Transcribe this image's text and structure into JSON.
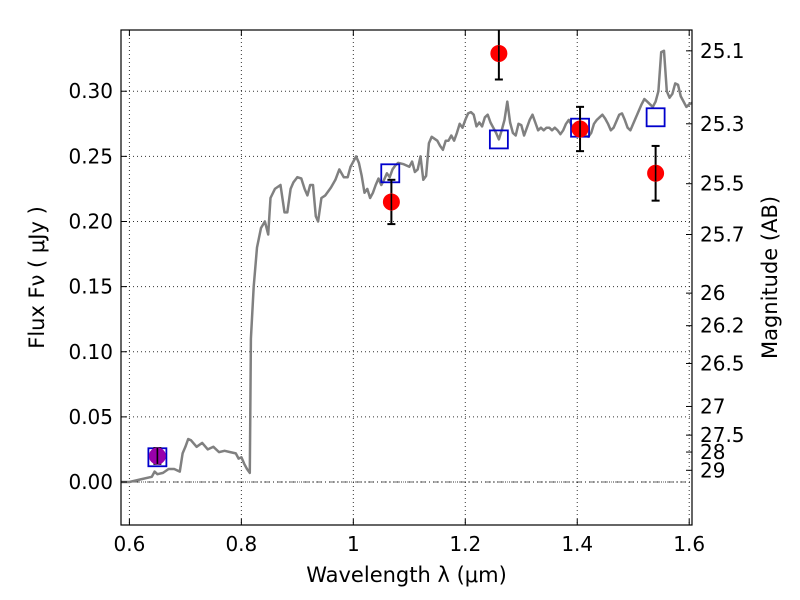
{
  "chart_data": {
    "type": "scatter",
    "xlabel": "Wavelength  λ (μm)",
    "ylabel": "Flux  Fν  ( μJy )",
    "ylabel_right": "Magnitude (AB)",
    "xlim": [
      0.585,
      1.605
    ],
    "ylim": [
      -0.033,
      0.347
    ],
    "grid": true,
    "x_ticks": [
      0.6,
      0.8,
      1.0,
      1.2,
      1.4,
      1.6
    ],
    "x_tick_labels": [
      "0.6",
      "0.8",
      "1",
      "1.2",
      "1.4",
      "1.6"
    ],
    "y_ticks": [
      0.0,
      0.05,
      0.1,
      0.15,
      0.2,
      0.25,
      0.3
    ],
    "y_tick_labels": [
      "0.00",
      "0.05",
      "0.10",
      "0.15",
      "0.20",
      "0.25",
      "0.30"
    ],
    "right_ticks": [
      {
        "flux": 0.331,
        "label": "25.1"
      },
      {
        "flux": 0.275,
        "label": "25.3"
      },
      {
        "flux": 0.229,
        "label": "25.5"
      },
      {
        "flux": 0.19,
        "label": "25.7"
      },
      {
        "flux": 0.145,
        "label": "26"
      },
      {
        "flux": 0.12,
        "label": "26.2"
      },
      {
        "flux": 0.091,
        "label": "26.5"
      },
      {
        "flux": 0.058,
        "label": "27"
      },
      {
        "flux": 0.036,
        "label": "27.5"
      },
      {
        "flux": 0.023,
        "label": "28"
      },
      {
        "flux": 0.009,
        "label": "29"
      }
    ],
    "series": [
      {
        "kind": "line",
        "color": "#808080",
        "points": [
          [
            0.585,
            0.0
          ],
          [
            0.6,
            0.0
          ],
          [
            0.62,
            0.002
          ],
          [
            0.64,
            0.004
          ],
          [
            0.645,
            0.008
          ],
          [
            0.65,
            0.006
          ],
          [
            0.66,
            0.007
          ],
          [
            0.67,
            0.01
          ],
          [
            0.68,
            0.01
          ],
          [
            0.69,
            0.008
          ],
          [
            0.695,
            0.022
          ],
          [
            0.7,
            0.027
          ],
          [
            0.705,
            0.033
          ],
          [
            0.71,
            0.032
          ],
          [
            0.72,
            0.027
          ],
          [
            0.73,
            0.03
          ],
          [
            0.74,
            0.025
          ],
          [
            0.75,
            0.027
          ],
          [
            0.76,
            0.023
          ],
          [
            0.77,
            0.024
          ],
          [
            0.78,
            0.023
          ],
          [
            0.79,
            0.022
          ],
          [
            0.795,
            0.018
          ],
          [
            0.8,
            0.019
          ],
          [
            0.805,
            0.014
          ],
          [
            0.81,
            0.01
          ],
          [
            0.815,
            0.007
          ],
          [
            0.817,
            0.11
          ],
          [
            0.822,
            0.15
          ],
          [
            0.828,
            0.18
          ],
          [
            0.835,
            0.195
          ],
          [
            0.842,
            0.2
          ],
          [
            0.848,
            0.19
          ],
          [
            0.852,
            0.218
          ],
          [
            0.86,
            0.225
          ],
          [
            0.87,
            0.228
          ],
          [
            0.877,
            0.207
          ],
          [
            0.882,
            0.207
          ],
          [
            0.888,
            0.225
          ],
          [
            0.893,
            0.23
          ],
          [
            0.9,
            0.234
          ],
          [
            0.907,
            0.233
          ],
          [
            0.913,
            0.225
          ],
          [
            0.918,
            0.22
          ],
          [
            0.923,
            0.228
          ],
          [
            0.928,
            0.228
          ],
          [
            0.933,
            0.204
          ],
          [
            0.937,
            0.2
          ],
          [
            0.943,
            0.218
          ],
          [
            0.95,
            0.22
          ],
          [
            0.96,
            0.226
          ],
          [
            0.968,
            0.232
          ],
          [
            0.975,
            0.24
          ],
          [
            0.983,
            0.234
          ],
          [
            0.99,
            0.234
          ],
          [
            0.995,
            0.242
          ],
          [
            1.0,
            0.246
          ],
          [
            1.005,
            0.25
          ],
          [
            1.01,
            0.245
          ],
          [
            1.015,
            0.235
          ],
          [
            1.02,
            0.222
          ],
          [
            1.025,
            0.225
          ],
          [
            1.03,
            0.218
          ],
          [
            1.035,
            0.222
          ],
          [
            1.04,
            0.228
          ],
          [
            1.045,
            0.233
          ],
          [
            1.05,
            0.228
          ],
          [
            1.055,
            0.232
          ],
          [
            1.06,
            0.237
          ],
          [
            1.065,
            0.234
          ],
          [
            1.07,
            0.24
          ],
          [
            1.075,
            0.243
          ],
          [
            1.08,
            0.245
          ],
          [
            1.09,
            0.244
          ],
          [
            1.1,
            0.242
          ],
          [
            1.105,
            0.246
          ],
          [
            1.11,
            0.238
          ],
          [
            1.115,
            0.24
          ],
          [
            1.12,
            0.25
          ],
          [
            1.125,
            0.232
          ],
          [
            1.13,
            0.235
          ],
          [
            1.135,
            0.26
          ],
          [
            1.14,
            0.265
          ],
          [
            1.15,
            0.262
          ],
          [
            1.155,
            0.258
          ],
          [
            1.16,
            0.255
          ],
          [
            1.165,
            0.262
          ],
          [
            1.17,
            0.262
          ],
          [
            1.175,
            0.266
          ],
          [
            1.18,
            0.262
          ],
          [
            1.185,
            0.268
          ],
          [
            1.19,
            0.275
          ],
          [
            1.195,
            0.272
          ],
          [
            1.2,
            0.278
          ],
          [
            1.205,
            0.283
          ],
          [
            1.21,
            0.284
          ],
          [
            1.215,
            0.282
          ],
          [
            1.22,
            0.273
          ],
          [
            1.225,
            0.276
          ],
          [
            1.23,
            0.273
          ],
          [
            1.235,
            0.28
          ],
          [
            1.24,
            0.282
          ],
          [
            1.245,
            0.276
          ],
          [
            1.25,
            0.272
          ],
          [
            1.255,
            0.268
          ],
          [
            1.26,
            0.263
          ],
          [
            1.265,
            0.27
          ],
          [
            1.27,
            0.278
          ],
          [
            1.275,
            0.292
          ],
          [
            1.28,
            0.276
          ],
          [
            1.285,
            0.268
          ],
          [
            1.29,
            0.266
          ],
          [
            1.295,
            0.275
          ],
          [
            1.3,
            0.274
          ],
          [
            1.305,
            0.266
          ],
          [
            1.31,
            0.272
          ],
          [
            1.315,
            0.278
          ],
          [
            1.32,
            0.282
          ],
          [
            1.325,
            0.276
          ],
          [
            1.33,
            0.27
          ],
          [
            1.335,
            0.272
          ],
          [
            1.34,
            0.27
          ],
          [
            1.345,
            0.272
          ],
          [
            1.35,
            0.272
          ],
          [
            1.355,
            0.27
          ],
          [
            1.36,
            0.272
          ],
          [
            1.365,
            0.27
          ],
          [
            1.37,
            0.267
          ],
          [
            1.375,
            0.27
          ],
          [
            1.38,
            0.275
          ],
          [
            1.385,
            0.278
          ],
          [
            1.39,
            0.274
          ],
          [
            1.395,
            0.27
          ],
          [
            1.4,
            0.272
          ],
          [
            1.405,
            0.275
          ],
          [
            1.41,
            0.27
          ],
          [
            1.415,
            0.266
          ],
          [
            1.42,
            0.265
          ],
          [
            1.425,
            0.268
          ],
          [
            1.43,
            0.275
          ],
          [
            1.435,
            0.278
          ],
          [
            1.44,
            0.28
          ],
          [
            1.445,
            0.282
          ],
          [
            1.45,
            0.279
          ],
          [
            1.455,
            0.275
          ],
          [
            1.46,
            0.27
          ],
          [
            1.465,
            0.272
          ],
          [
            1.47,
            0.277
          ],
          [
            1.475,
            0.282
          ],
          [
            1.48,
            0.283
          ],
          [
            1.485,
            0.278
          ],
          [
            1.49,
            0.272
          ],
          [
            1.495,
            0.27
          ],
          [
            1.5,
            0.275
          ],
          [
            1.505,
            0.28
          ],
          [
            1.51,
            0.285
          ],
          [
            1.515,
            0.29
          ],
          [
            1.52,
            0.294
          ],
          [
            1.525,
            0.292
          ],
          [
            1.53,
            0.29
          ],
          [
            1.535,
            0.288
          ],
          [
            1.54,
            0.292
          ],
          [
            1.545,
            0.3
          ],
          [
            1.55,
            0.33
          ],
          [
            1.555,
            0.331
          ],
          [
            1.56,
            0.3
          ],
          [
            1.565,
            0.295
          ],
          [
            1.57,
            0.298
          ],
          [
            1.575,
            0.306
          ],
          [
            1.58,
            0.305
          ],
          [
            1.585,
            0.296
          ],
          [
            1.59,
            0.292
          ],
          [
            1.595,
            0.288
          ],
          [
            1.6,
            0.29
          ],
          [
            1.605,
            0.291
          ]
        ]
      },
      {
        "kind": "scatter",
        "marker": "open-square",
        "color": "#0000cc",
        "points": [
          [
            0.65,
            0.019
          ],
          [
            1.066,
            0.237
          ],
          [
            1.26,
            0.263
          ],
          [
            1.405,
            0.272
          ],
          [
            1.54,
            0.28
          ]
        ]
      },
      {
        "kind": "errorbar",
        "marker": "filled-circle",
        "color": "#ff0000",
        "points": [
          {
            "x": 0.65,
            "y": 0.02,
            "err": 0.006
          },
          {
            "x": 1.068,
            "y": 0.215,
            "err": 0.017
          },
          {
            "x": 1.26,
            "y": 0.329,
            "err": 0.02
          },
          {
            "x": 1.405,
            "y": 0.271,
            "err": 0.017
          },
          {
            "x": 1.54,
            "y": 0.237,
            "err": 0.021
          }
        ]
      }
    ]
  }
}
